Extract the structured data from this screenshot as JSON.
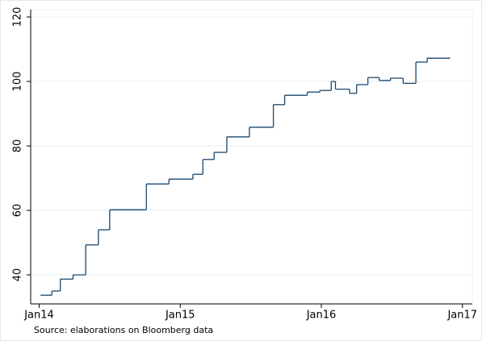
{
  "chart_data": {
    "type": "line",
    "step": "post",
    "note": "Source: elaborations on Bloomberg data",
    "x": [
      2014.01,
      2014.09,
      2014.15,
      2014.24,
      2014.33,
      2014.42,
      2014.5,
      2014.76,
      2014.92,
      2015.09,
      2015.16,
      2015.24,
      2015.33,
      2015.49,
      2015.66,
      2015.74,
      2015.9,
      2015.99,
      2016.07,
      2016.1,
      2016.2,
      2016.25,
      2016.33,
      2016.41,
      2016.49,
      2016.58,
      2016.67,
      2016.75,
      2016.91
    ],
    "series": [
      {
        "color": "#1a476f",
        "values": [
          33.7,
          35,
          38.7,
          40,
          49.3,
          54,
          60.2,
          68.2,
          69.7,
          71.2,
          75.8,
          78,
          82.8,
          85.8,
          92.8,
          95.7,
          96.7,
          97.2,
          100,
          97.6,
          96.3,
          99,
          101.2,
          100.3,
          101,
          99.4,
          106,
          107.2,
          107.2
        ]
      }
    ],
    "xlim": [
      2013.94,
      2017.07
    ],
    "xticks": [
      {
        "value": 2014,
        "label": "Jan14"
      },
      {
        "value": 2015,
        "label": "Jan15"
      },
      {
        "value": 2016,
        "label": "Jan16"
      },
      {
        "value": 2017,
        "label": "Jan17"
      }
    ],
    "ylim": [
      31,
      122.25
    ],
    "yticks": [
      40,
      60,
      80,
      100,
      120
    ],
    "grid": true
  }
}
